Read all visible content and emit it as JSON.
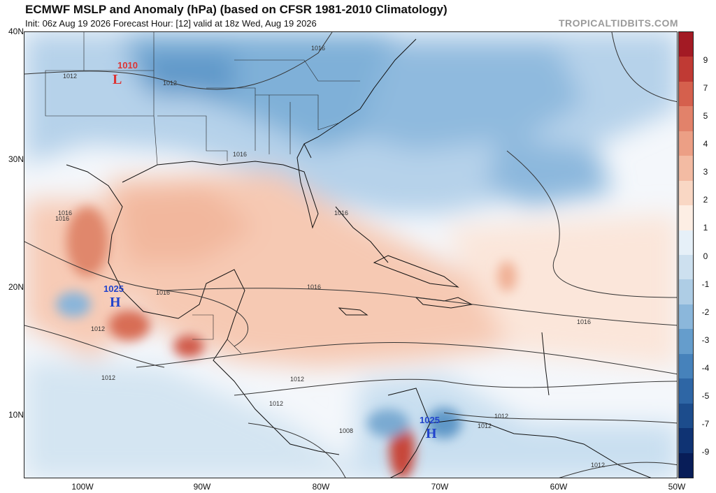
{
  "header": {
    "title": "ECMWF MSLP and Anomaly (hPa) (based on CFSR 1981-2010 Climatology)",
    "subtitle": "Init: 06z Aug 19 2026   Forecast Hour: [12]   valid at 18z Wed, Aug 19 2026",
    "credit": "TROPICALTIDBITS.COM"
  },
  "axes": {
    "lat_labels": [
      "40N",
      "30N",
      "20N",
      "10N"
    ],
    "lon_labels": [
      "100W",
      "90W",
      "80W",
      "70W",
      "60W",
      "50W"
    ]
  },
  "colorbar": {
    "labels": [
      "9",
      "7",
      "5",
      "4",
      "3",
      "2",
      "1",
      "0",
      "-1",
      "-2",
      "-3",
      "-4",
      "-5",
      "-7",
      "-9"
    ],
    "positive_colors": [
      "#a31a24",
      "#c03a34",
      "#d5604d",
      "#e2826a",
      "#ec9f85",
      "#f3bba3",
      "#f9d7c4",
      "#fdeee4"
    ],
    "negative_colors": [
      "#e6f0f8",
      "#cde0ef",
      "#aecde5",
      "#8bb7db",
      "#659dcc",
      "#4682bb",
      "#2e66a5",
      "#1c4c8c",
      "#0f3373",
      "#081d58"
    ]
  },
  "features": {
    "low": {
      "symbol": "L",
      "pressure": "1010",
      "color": "#d33"
    },
    "high_west": {
      "symbol": "H",
      "pressure": "1025",
      "color": "#2244cc"
    },
    "high_south": {
      "symbol": "H",
      "pressure": "1025",
      "color": "#2244cc"
    }
  },
  "isobar_labels": [
    "1012",
    "1012",
    "1016",
    "1016",
    "1016",
    "1016",
    "1016",
    "1016",
    "1016",
    "1016",
    "1012",
    "1012",
    "1012",
    "1012",
    "1008",
    "1012",
    "1012",
    "1012"
  ]
}
